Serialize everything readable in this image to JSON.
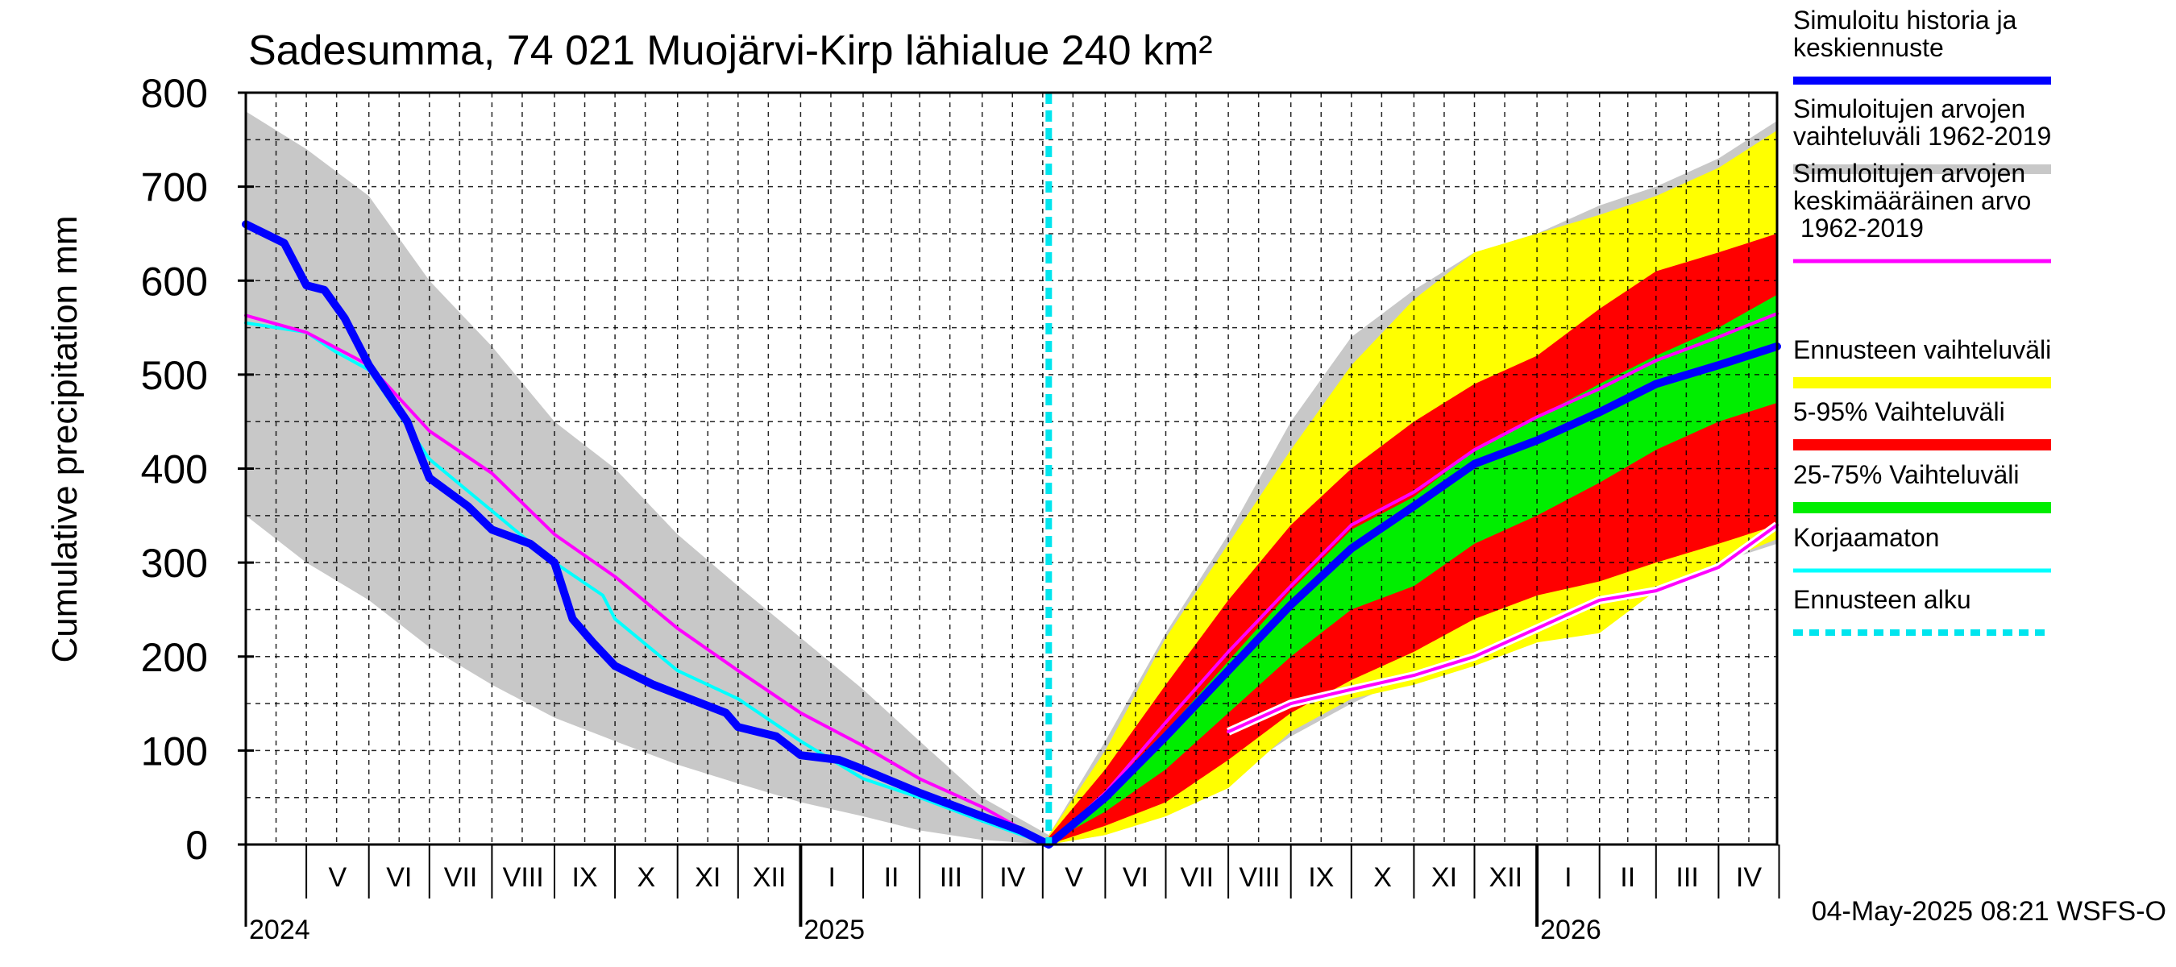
{
  "chart_data": {
    "type": "area",
    "title": "Sadesumma, 74 021 Muojärvi-Kirp lähialue 240 km²",
    "ylabel": "Cumulative precipitation   mm",
    "xlabel": "",
    "ylim": [
      0,
      800
    ],
    "yticks": [
      "0",
      "100",
      "200",
      "300",
      "400",
      "500",
      "600",
      "700",
      "800"
    ],
    "grid": true,
    "legend_position": "right",
    "x_start": "2024-04-01",
    "x_end": "2026-04-30",
    "forecast_start": "2025-05-04",
    "month_labels": [
      "V",
      "VI",
      "VII",
      "VIII",
      "IX",
      "X",
      "XI",
      "XII",
      "I",
      "II",
      "III",
      "IV",
      "V",
      "VI",
      "VII",
      "VIII",
      "IX",
      "X",
      "XI",
      "XII",
      "I",
      "II",
      "III",
      "IV"
    ],
    "year_labels": [
      {
        "label": "2024",
        "month_index": 0
      },
      {
        "label": "2025",
        "month_index": 8
      },
      {
        "label": "2026",
        "month_index": 20
      }
    ],
    "timestamp": "04-May-2025 08:21 WSFS-O",
    "legend": [
      {
        "label": "Simuloitu historia ja keskiennuste",
        "color": "#0000ff"
      },
      {
        "label": "Simuloitujen arvojen vaihteluväli 1962-2019",
        "color": "#c8c8c8"
      },
      {
        "label": "Simuloitujen arvojen keskimääräinen arvo 1962-2019",
        "color": "#ff00ff"
      },
      {
        "label": "Ennusteen vaihteluväli",
        "color": "#ffff00"
      },
      {
        "label": "5-95% Vaihteluväli",
        "color": "#ff0000"
      },
      {
        "label": "25-75% Vaihteluväli",
        "color": "#00ee00"
      },
      {
        "label": "Korjaamaton",
        "color": "#00ffff"
      },
      {
        "label": "Ennusteen alku",
        "color": "#00e5ee"
      }
    ],
    "series": [
      {
        "name": "Simuloitujen arvojen vaihteluväli 1962-2019",
        "kind": "band",
        "x": [
          "2024-04-01",
          "2024-05-01",
          "2024-06-01",
          "2024-07-01",
          "2024-08-01",
          "2024-09-01",
          "2024-10-01",
          "2024-11-01",
          "2024-12-01",
          "2025-01-01",
          "2025-02-01",
          "2025-03-01",
          "2025-04-01",
          "2025-05-04",
          "2025-06-01",
          "2025-07-01",
          "2025-08-01",
          "2025-09-01",
          "2025-10-01",
          "2025-11-01",
          "2025-12-01",
          "2026-01-01",
          "2026-02-01",
          "2026-03-01",
          "2026-04-01",
          "2026-04-30"
        ],
        "upper": [
          780,
          740,
          690,
          600,
          530,
          450,
          400,
          330,
          275,
          220,
          165,
          110,
          50,
          10,
          110,
          225,
          330,
          450,
          540,
          590,
          630,
          650,
          680,
          700,
          730,
          770
        ],
        "lower": [
          350,
          300,
          260,
          210,
          170,
          135,
          110,
          85,
          65,
          45,
          30,
          15,
          5,
          0,
          10,
          35,
          70,
          115,
          150,
          180,
          215,
          240,
          260,
          280,
          300,
          320
        ]
      },
      {
        "name": "Ennusteen vaihteluväli",
        "kind": "band",
        "x": [
          "2025-05-04",
          "2025-06-01",
          "2025-07-01",
          "2025-08-01",
          "2025-09-01",
          "2025-10-01",
          "2025-11-01",
          "2025-12-01",
          "2026-01-01",
          "2026-02-01",
          "2026-03-01",
          "2026-04-01",
          "2026-04-30"
        ],
        "upper": [
          10,
          100,
          220,
          320,
          420,
          510,
          580,
          630,
          650,
          670,
          690,
          720,
          760
        ],
        "lower": [
          0,
          10,
          30,
          60,
          120,
          155,
          170,
          190,
          215,
          225,
          270,
          300,
          325
        ]
      },
      {
        "name": "5-95% Vaihteluväli",
        "kind": "band",
        "x": [
          "2025-05-04",
          "2025-06-01",
          "2025-07-01",
          "2025-08-01",
          "2025-09-01",
          "2025-10-01",
          "2025-11-01",
          "2025-12-01",
          "2026-01-01",
          "2026-02-01",
          "2026-03-01",
          "2026-04-01",
          "2026-04-30"
        ],
        "upper": [
          8,
          80,
          170,
          260,
          340,
          400,
          450,
          490,
          520,
          570,
          610,
          630,
          650
        ],
        "lower": [
          0,
          20,
          45,
          90,
          140,
          175,
          205,
          240,
          265,
          280,
          300,
          320,
          340
        ]
      },
      {
        "name": "25-75% Vaihteluväli",
        "kind": "band",
        "x": [
          "2025-05-04",
          "2025-06-01",
          "2025-07-01",
          "2025-08-01",
          "2025-09-01",
          "2025-10-01",
          "2025-11-01",
          "2025-12-01",
          "2026-01-01",
          "2026-02-01",
          "2026-03-01",
          "2026-04-01",
          "2026-04-30"
        ],
        "upper": [
          5,
          55,
          120,
          195,
          270,
          335,
          370,
          420,
          455,
          490,
          520,
          550,
          585
        ],
        "lower": [
          2,
          35,
          80,
          140,
          200,
          250,
          275,
          320,
          350,
          385,
          420,
          450,
          470
        ]
      },
      {
        "name": "Korjaamaton",
        "kind": "line",
        "color": "#00ffff",
        "width": 4,
        "x": [
          "2024-04-01",
          "2024-05-01",
          "2024-05-15",
          "2024-06-01",
          "2024-06-20",
          "2024-07-01",
          "2024-08-01",
          "2024-08-15",
          "2024-09-01",
          "2024-09-25",
          "2024-10-01",
          "2024-11-01",
          "2024-12-01",
          "2025-01-01",
          "2025-02-01",
          "2025-03-01",
          "2025-04-01",
          "2025-05-04"
        ],
        "y": [
          555,
          545,
          525,
          505,
          445,
          410,
          355,
          330,
          300,
          265,
          240,
          185,
          155,
          110,
          70,
          50,
          25,
          0
        ]
      },
      {
        "name": "Simuloitujen arvojen keskimääräinen arvo 1962-2019",
        "kind": "line",
        "color": "#ff00ff",
        "width": 4,
        "x": [
          "2024-04-01",
          "2024-05-01",
          "2024-06-01",
          "2024-07-01",
          "2024-08-01",
          "2024-09-01",
          "2024-10-01",
          "2024-11-01",
          "2024-12-01",
          "2025-01-01",
          "2025-02-01",
          "2025-03-01",
          "2025-04-01",
          "2025-05-04",
          "2025-06-01",
          "2025-07-01",
          "2025-08-01",
          "2025-09-01",
          "2025-10-01",
          "2025-11-01",
          "2025-12-01",
          "2026-01-01",
          "2026-02-01",
          "2026-03-01",
          "2026-04-01",
          "2026-04-30"
        ],
        "y": [
          563,
          545,
          510,
          440,
          395,
          330,
          285,
          230,
          185,
          140,
          105,
          70,
          40,
          0,
          55,
          130,
          205,
          275,
          340,
          375,
          420,
          455,
          485,
          515,
          540,
          565
        ]
      },
      {
        "name": "Simuloitu historia ja keskiennuste",
        "kind": "line",
        "color": "#0000ff",
        "width": 10,
        "x": [
          "2024-04-01",
          "2024-04-20",
          "2024-05-01",
          "2024-05-10",
          "2024-05-20",
          "2024-06-01",
          "2024-06-20",
          "2024-07-01",
          "2024-07-20",
          "2024-08-01",
          "2024-08-20",
          "2024-09-01",
          "2024-09-10",
          "2024-09-20",
          "2024-10-01",
          "2024-10-20",
          "2024-11-01",
          "2024-11-25",
          "2024-12-01",
          "2024-12-20",
          "2025-01-01",
          "2025-01-20",
          "2025-02-01",
          "2025-03-01",
          "2025-04-01",
          "2025-04-20",
          "2025-05-04",
          "2025-06-01",
          "2025-07-01",
          "2025-08-01",
          "2025-09-01",
          "2025-10-01",
          "2025-11-01",
          "2025-12-01",
          "2026-01-01",
          "2026-02-01",
          "2026-03-01",
          "2026-04-01",
          "2026-04-30"
        ],
        "y": [
          660,
          640,
          595,
          590,
          560,
          510,
          450,
          390,
          360,
          335,
          320,
          300,
          240,
          215,
          190,
          170,
          160,
          140,
          125,
          115,
          95,
          90,
          80,
          55,
          30,
          15,
          0,
          50,
          115,
          185,
          255,
          315,
          360,
          405,
          430,
          460,
          490,
          510,
          530
        ]
      },
      {
        "name": "",
        "kind": "line",
        "color": "#ff00ff",
        "width": 4,
        "outline": "#ffffff",
        "x": [
          "2025-08-01",
          "2025-09-01",
          "2025-10-01",
          "2025-11-01",
          "2025-12-01",
          "2026-01-01",
          "2026-02-01",
          "2026-03-01",
          "2026-04-01",
          "2026-04-30"
        ],
        "y": [
          120,
          150,
          165,
          180,
          200,
          230,
          260,
          270,
          295,
          340
        ]
      }
    ]
  }
}
